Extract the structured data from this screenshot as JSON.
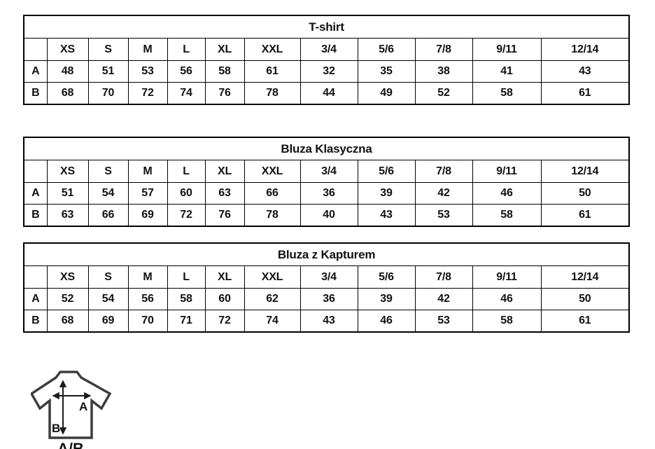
{
  "size_columns": [
    "XS",
    "S",
    "M",
    "L",
    "XL",
    "XXL",
    "3/4",
    "5/6",
    "7/8",
    "9/11",
    "12/14"
  ],
  "row_labels": [
    "A",
    "B"
  ],
  "tables": [
    {
      "title": "T-shirt",
      "rows": [
        {
          "label": "A",
          "values": [
            48,
            51,
            53,
            56,
            58,
            61,
            32,
            35,
            38,
            41,
            43
          ]
        },
        {
          "label": "B",
          "values": [
            68,
            70,
            72,
            74,
            76,
            78,
            44,
            49,
            52,
            58,
            61
          ]
        }
      ]
    },
    {
      "title": "Bluza Klasyczna",
      "rows": [
        {
          "label": "A",
          "values": [
            51,
            54,
            57,
            60,
            63,
            66,
            36,
            39,
            42,
            46,
            50
          ]
        },
        {
          "label": "B",
          "values": [
            63,
            66,
            69,
            72,
            76,
            78,
            40,
            43,
            53,
            58,
            61
          ]
        }
      ]
    },
    {
      "title": "Bluza z Kapturem",
      "rows": [
        {
          "label": "A",
          "values": [
            52,
            54,
            56,
            58,
            60,
            62,
            36,
            39,
            42,
            46,
            50
          ]
        },
        {
          "label": "B",
          "values": [
            68,
            69,
            70,
            71,
            72,
            74,
            43,
            46,
            53,
            58,
            61
          ]
        }
      ]
    }
  ],
  "diagram": {
    "width_arrow_label": "A",
    "length_arrow_label": "B",
    "caption": "A/B",
    "outline_color": "#3d3d40",
    "arrow_color": "#1a1a1a",
    "border_color": "#000000"
  }
}
